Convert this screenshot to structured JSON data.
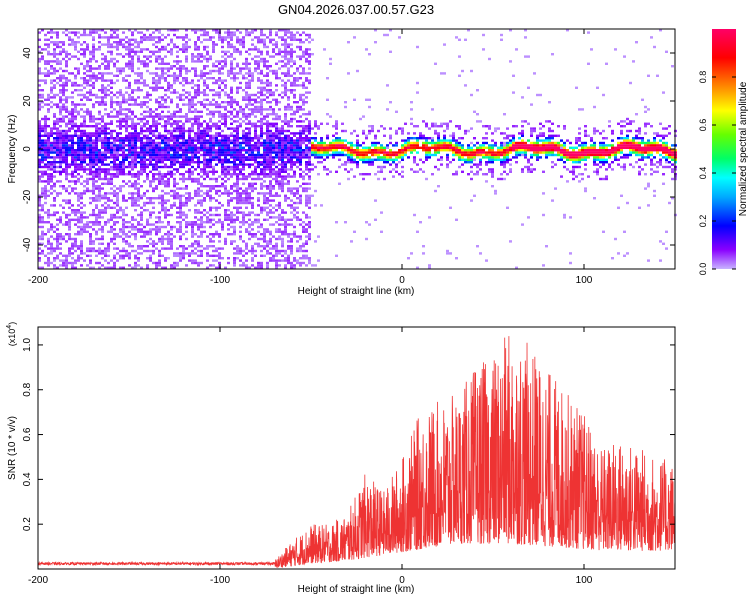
{
  "figure_title": "GN04.2026.037.00.57.G23",
  "chart_data": [
    {
      "type": "heatmap",
      "title": "GN04.2026.037.00.57.G23",
      "xlabel": "Height of straight line (km)",
      "ylabel": "Frequency (Hz)",
      "xlim": [
        -200,
        150
      ],
      "ylim": [
        -50,
        50
      ],
      "x_ticks": [
        -200,
        -100,
        0,
        100
      ],
      "y_ticks": [
        -40,
        -20,
        0,
        20,
        40
      ],
      "colorbar": {
        "label": "Normalized spectral amplitude",
        "range": [
          0,
          1
        ],
        "ticks": [
          0.0,
          0.2,
          0.4,
          0.6,
          0.8
        ],
        "colormap": [
          "#c8b4ff",
          "#8a00ff",
          "#0000ff",
          "#00aaff",
          "#00ffff",
          "#00ff66",
          "#66ff00",
          "#ffff00",
          "#ff8800",
          "#ff0000",
          "#ff0066"
        ]
      },
      "regions": [
        {
          "x_range": [
            -200,
            -50
          ],
          "description": "broadband noise spread over full frequency range, energy concentrated within about ±10 Hz",
          "peak_amplitude": 0.3
        },
        {
          "x_range": [
            -50,
            150
          ],
          "description": "narrow signal band centered near 0 Hz, width about ±5 Hz",
          "peak_amplitude": 0.95
        }
      ],
      "grid": false
    },
    {
      "type": "line",
      "xlabel": "Height of straight line (km)",
      "ylabel": "SNR (10 * v/v)",
      "y_scale_label": "(x10",
      "y_scale_exponent": "4",
      "xlim": [
        -200,
        150
      ],
      "ylim": [
        0,
        1.08
      ],
      "x_ticks": [
        -200,
        -100,
        0,
        100
      ],
      "y_ticks": [
        0.2,
        0.4,
        0.6,
        0.8,
        1.0
      ],
      "series": [
        {
          "color": "#ee3333",
          "envelope_x": [
            -200,
            -100,
            -70,
            -60,
            -50,
            -40,
            -30,
            -20,
            -10,
            0,
            10,
            20,
            30,
            40,
            50,
            60,
            70,
            80,
            90,
            100,
            110,
            120,
            130,
            140,
            150
          ],
          "envelope_max": [
            0.03,
            0.03,
            0.04,
            0.13,
            0.2,
            0.2,
            0.25,
            0.43,
            0.35,
            0.5,
            0.7,
            0.75,
            0.78,
            0.9,
            0.95,
            1.08,
            1.0,
            0.9,
            0.8,
            0.7,
            0.55,
            0.58,
            0.55,
            0.5,
            0.48
          ],
          "envelope_mean": [
            0.02,
            0.02,
            0.02,
            0.05,
            0.1,
            0.12,
            0.15,
            0.2,
            0.25,
            0.3,
            0.35,
            0.4,
            0.45,
            0.45,
            0.45,
            0.45,
            0.42,
            0.4,
            0.38,
            0.35,
            0.33,
            0.33,
            0.32,
            0.32,
            0.35
          ]
        }
      ],
      "grid": false
    }
  ]
}
